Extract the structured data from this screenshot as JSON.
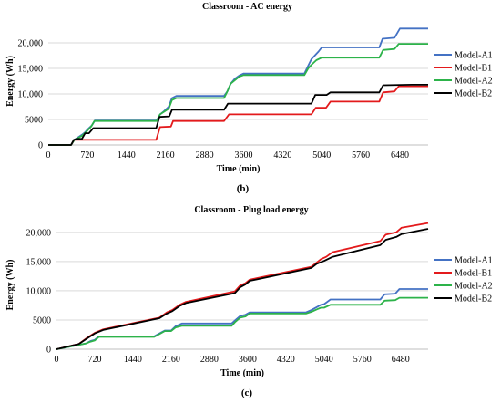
{
  "chart_data": [
    {
      "type": "line",
      "title": "Classroom - AC energy",
      "xlabel": "Time (min)",
      "ylabel": "Energy (Wh)",
      "xlim": [
        0,
        7000
      ],
      "ylim": [
        0,
        25000
      ],
      "xticks": [
        0,
        720,
        1440,
        2160,
        2880,
        3600,
        4320,
        5040,
        5760,
        6480
      ],
      "yticks": [
        0,
        5000,
        10000,
        15000,
        20000
      ],
      "ytick_labels": [
        "0",
        "5000",
        "10,000",
        "15,000",
        "20,000"
      ],
      "grid": "horizontal",
      "legend": "right",
      "caption": "(b)",
      "series": [
        {
          "name": "Model-A1",
          "color": "#4472c4",
          "points": [
            [
              0,
              0
            ],
            [
              420,
              0
            ],
            [
              480,
              1000
            ],
            [
              620,
              2000
            ],
            [
              680,
              2500
            ],
            [
              720,
              3000
            ],
            [
              800,
              3800
            ],
            [
              860,
              4800
            ],
            [
              2000,
              4800
            ],
            [
              2060,
              6000
            ],
            [
              2120,
              6500
            ],
            [
              2220,
              7500
            ],
            [
              2280,
              9200
            ],
            [
              2360,
              9600
            ],
            [
              3240,
              9600
            ],
            [
              3300,
              10500
            ],
            [
              3360,
              12000
            ],
            [
              3440,
              13000
            ],
            [
              3520,
              13600
            ],
            [
              3600,
              14000
            ],
            [
              4720,
              14000
            ],
            [
              4790,
              15500
            ],
            [
              4850,
              16800
            ],
            [
              4910,
              17500
            ],
            [
              4980,
              18300
            ],
            [
              5040,
              19100
            ],
            [
              6100,
              19100
            ],
            [
              6160,
              20800
            ],
            [
              6380,
              21000
            ],
            [
              6480,
              22800
            ],
            [
              6900,
              22800
            ],
            [
              7000,
              22800
            ]
          ]
        },
        {
          "name": "Model-B1",
          "color": "#e31a1c",
          "points": [
            [
              0,
              0
            ],
            [
              420,
              0
            ],
            [
              480,
              1000
            ],
            [
              1500,
              1000
            ],
            [
              1990,
              1000
            ],
            [
              2060,
              3500
            ],
            [
              2260,
              3600
            ],
            [
              2300,
              4700
            ],
            [
              3240,
              4700
            ],
            [
              3330,
              6000
            ],
            [
              4850,
              6000
            ],
            [
              4930,
              7300
            ],
            [
              5120,
              7300
            ],
            [
              5200,
              8500
            ],
            [
              6100,
              8500
            ],
            [
              6170,
              10300
            ],
            [
              6380,
              10500
            ],
            [
              6460,
              11500
            ],
            [
              6900,
              11500
            ],
            [
              7000,
              11500
            ]
          ]
        },
        {
          "name": "Model-A2",
          "color": "#2db34a",
          "points": [
            [
              0,
              0
            ],
            [
              420,
              0
            ],
            [
              480,
              1000
            ],
            [
              620,
              1800
            ],
            [
              680,
              2400
            ],
            [
              720,
              2800
            ],
            [
              790,
              3600
            ],
            [
              850,
              4700
            ],
            [
              2000,
              4700
            ],
            [
              2060,
              6000
            ],
            [
              2220,
              7100
            ],
            [
              2280,
              8800
            ],
            [
              2360,
              9200
            ],
            [
              3240,
              9200
            ],
            [
              3300,
              10500
            ],
            [
              3360,
              12000
            ],
            [
              3430,
              12600
            ],
            [
              3520,
              13400
            ],
            [
              3600,
              13700
            ],
            [
              4720,
              13700
            ],
            [
              4790,
              15000
            ],
            [
              4860,
              15800
            ],
            [
              4940,
              16600
            ],
            [
              5040,
              17100
            ],
            [
              6100,
              17100
            ],
            [
              6170,
              18600
            ],
            [
              6380,
              18800
            ],
            [
              6460,
              19800
            ],
            [
              6900,
              19800
            ],
            [
              7000,
              19800
            ]
          ]
        },
        {
          "name": "Model-B2",
          "color": "#000000",
          "points": [
            [
              0,
              0
            ],
            [
              420,
              0
            ],
            [
              470,
              1000
            ],
            [
              520,
              1200
            ],
            [
              620,
              1200
            ],
            [
              680,
              2300
            ],
            [
              750,
              2300
            ],
            [
              830,
              3300
            ],
            [
              1990,
              3300
            ],
            [
              2050,
              5500
            ],
            [
              2230,
              5600
            ],
            [
              2280,
              6900
            ],
            [
              3240,
              6900
            ],
            [
              3310,
              8100
            ],
            [
              4850,
              8100
            ],
            [
              4920,
              9800
            ],
            [
              5130,
              9800
            ],
            [
              5200,
              10300
            ],
            [
              6100,
              10300
            ],
            [
              6170,
              11700
            ],
            [
              6700,
              11800
            ],
            [
              7000,
              11800
            ]
          ]
        }
      ]
    },
    {
      "type": "line",
      "title": "Classroom - Plug load energy",
      "xlabel": "Time (min)",
      "ylabel": "Energy (Wh)",
      "xlim": [
        0,
        7000
      ],
      "ylim": [
        0,
        22000
      ],
      "xticks": [
        0,
        720,
        1440,
        2160,
        2880,
        3600,
        4320,
        5040,
        5760,
        6480
      ],
      "yticks": [
        0,
        5000,
        10000,
        15000,
        20000
      ],
      "ytick_labels": [
        "0",
        "5000",
        "10,000",
        "15,000",
        "20,000"
      ],
      "grid": "horizontal",
      "legend": "right",
      "caption": "(c)",
      "series": [
        {
          "name": "Model-A1",
          "color": "#4472c4",
          "points": [
            [
              0,
              0
            ],
            [
              450,
              800
            ],
            [
              560,
              1000
            ],
            [
              640,
              1400
            ],
            [
              720,
              1600
            ],
            [
              800,
              2200
            ],
            [
              1840,
              2200
            ],
            [
              1920,
              2600
            ],
            [
              2040,
              3200
            ],
            [
              2160,
              3200
            ],
            [
              2240,
              3900
            ],
            [
              2360,
              4400
            ],
            [
              3300,
              4400
            ],
            [
              3370,
              5000
            ],
            [
              3460,
              5700
            ],
            [
              3560,
              5900
            ],
            [
              3640,
              6300
            ],
            [
              4700,
              6300
            ],
            [
              4800,
              6700
            ],
            [
              4900,
              7200
            ],
            [
              4980,
              7600
            ],
            [
              5040,
              7700
            ],
            [
              5160,
              8500
            ],
            [
              6100,
              8500
            ],
            [
              6180,
              9400
            ],
            [
              6380,
              9500
            ],
            [
              6460,
              10300
            ],
            [
              7000,
              10300
            ]
          ]
        },
        {
          "name": "Model-B1",
          "color": "#e31a1c",
          "points": [
            [
              0,
              0
            ],
            [
              420,
              900
            ],
            [
              600,
              2100
            ],
            [
              720,
              2800
            ],
            [
              880,
              3400
            ],
            [
              1940,
              5400
            ],
            [
              2080,
              6300
            ],
            [
              2180,
              6700
            ],
            [
              2320,
              7600
            ],
            [
              2440,
              8100
            ],
            [
              3360,
              9900
            ],
            [
              3460,
              10900
            ],
            [
              3560,
              11300
            ],
            [
              3640,
              11900
            ],
            [
              3800,
              12200
            ],
            [
              4800,
              14100
            ],
            [
              4900,
              14800
            ],
            [
              4980,
              15400
            ],
            [
              5080,
              15800
            ],
            [
              5200,
              16600
            ],
            [
              6100,
              18500
            ],
            [
              6200,
              19600
            ],
            [
              6400,
              20000
            ],
            [
              6500,
              20800
            ],
            [
              7000,
              21600
            ]
          ]
        },
        {
          "name": "Model-A2",
          "color": "#2db34a",
          "points": [
            [
              0,
              0
            ],
            [
              450,
              800
            ],
            [
              560,
              1000
            ],
            [
              640,
              1300
            ],
            [
              720,
              1500
            ],
            [
              800,
              2100
            ],
            [
              1840,
              2100
            ],
            [
              1920,
              2500
            ],
            [
              2040,
              3100
            ],
            [
              2160,
              3100
            ],
            [
              2240,
              3700
            ],
            [
              2360,
              4000
            ],
            [
              3300,
              4000
            ],
            [
              3370,
              4700
            ],
            [
              3460,
              5400
            ],
            [
              3560,
              5600
            ],
            [
              3640,
              6100
            ],
            [
              4700,
              6100
            ],
            [
              4800,
              6400
            ],
            [
              4900,
              6800
            ],
            [
              4980,
              7100
            ],
            [
              5040,
              7100
            ],
            [
              5160,
              7600
            ],
            [
              6100,
              7600
            ],
            [
              6180,
              8300
            ],
            [
              6380,
              8400
            ],
            [
              6460,
              8800
            ],
            [
              7000,
              8800
            ]
          ]
        },
        {
          "name": "Model-B2",
          "color": "#000000",
          "points": [
            [
              0,
              0
            ],
            [
              420,
              900
            ],
            [
              600,
              2000
            ],
            [
              720,
              2700
            ],
            [
              880,
              3300
            ],
            [
              1940,
              5300
            ],
            [
              2080,
              6100
            ],
            [
              2180,
              6500
            ],
            [
              2320,
              7400
            ],
            [
              2440,
              7900
            ],
            [
              3360,
              9600
            ],
            [
              3460,
              10600
            ],
            [
              3560,
              11100
            ],
            [
              3640,
              11700
            ],
            [
              3800,
              12000
            ],
            [
              4800,
              13900
            ],
            [
              4900,
              14600
            ],
            [
              5040,
              15100
            ],
            [
              5200,
              15800
            ],
            [
              6100,
              17800
            ],
            [
              6200,
              18700
            ],
            [
              6400,
              19200
            ],
            [
              6500,
              19700
            ],
            [
              7000,
              20600
            ]
          ]
        }
      ]
    }
  ]
}
